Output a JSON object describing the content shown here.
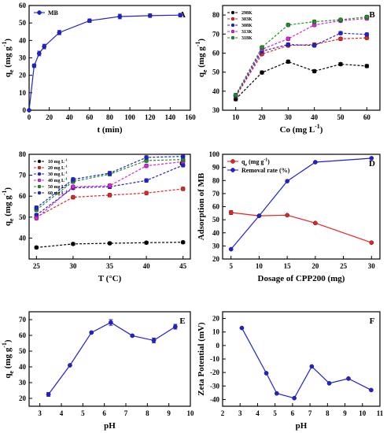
{
  "figure": {
    "background": "#ffffff"
  },
  "chart_data": [
    {
      "letter": "A",
      "type": "line",
      "xlabel": "t (min)",
      "ylabel": "q_e (mg g^-1)",
      "xlim": [
        0,
        160
      ],
      "ylim": [
        0,
        60
      ],
      "xticks": [
        0,
        20,
        40,
        60,
        80,
        100,
        120,
        140,
        160
      ],
      "yticks": [
        0,
        10,
        20,
        30,
        40,
        50,
        60
      ],
      "legend_position": "top-left",
      "series": [
        {
          "name": "MB",
          "color": "#1f1fdc",
          "style": "solid",
          "marker": "circle",
          "show_legend": true,
          "x": [
            0,
            5,
            10,
            15,
            30,
            60,
            90,
            120,
            150
          ],
          "y": [
            0,
            25.5,
            32.5,
            36.5,
            44.5,
            51.3,
            53.7,
            54.2,
            54.5
          ],
          "err": [
            0,
            1.0,
            1.3,
            1.3,
            1.2,
            1.0,
            1.3,
            1.0,
            1.0
          ]
        }
      ]
    },
    {
      "letter": "B",
      "type": "line",
      "xlabel": "Co (mg L^-1)",
      "ylabel": "q_e (mg g^-1)",
      "xlim": [
        5,
        65
      ],
      "ylim": [
        30,
        85
      ],
      "xticks": [
        10,
        20,
        30,
        40,
        50,
        60
      ],
      "yticks": [
        30,
        40,
        50,
        60,
        70,
        80
      ],
      "legend_position": "top-left",
      "series": [
        {
          "name": "298K",
          "color": "#000000",
          "style": "dashed",
          "marker": "circle",
          "show_legend": true,
          "x": [
            10,
            20,
            30,
            40,
            50,
            60
          ],
          "y": [
            35.8,
            49.8,
            55.5,
            50.5,
            54.2,
            53.2
          ],
          "err": [
            0.8,
            0.8,
            0.8,
            0.8,
            0.8,
            0.8
          ]
        },
        {
          "name": "303K",
          "color": "#e8231f",
          "style": "dashed",
          "marker": "circle",
          "show_legend": true,
          "x": [
            10,
            20,
            30,
            40,
            50,
            60
          ],
          "y": [
            37.2,
            59.5,
            64.0,
            64.5,
            67.5,
            68.0
          ],
          "err": [
            0.8,
            0.8,
            0.8,
            0.8,
            0.8,
            0.8
          ]
        },
        {
          "name": "308K",
          "color": "#1f1fdc",
          "style": "dashed",
          "marker": "circle",
          "show_legend": true,
          "x": [
            10,
            20,
            30,
            40,
            50,
            60
          ],
          "y": [
            37.5,
            61.0,
            64.5,
            64.0,
            70.5,
            69.8
          ],
          "err": [
            0.8,
            0.8,
            0.8,
            0.8,
            0.8,
            0.8
          ]
        },
        {
          "name": "313K",
          "color": "#e01fe0",
          "style": "dashed",
          "marker": "circle",
          "show_legend": true,
          "x": [
            10,
            20,
            30,
            40,
            50,
            60
          ],
          "y": [
            37.8,
            62.0,
            67.5,
            74.8,
            77.0,
            78.2
          ],
          "err": [
            0.8,
            0.8,
            0.8,
            0.8,
            0.8,
            0.8
          ]
        },
        {
          "name": "318K",
          "color": "#1f8f2a",
          "style": "dashed",
          "marker": "circle",
          "show_legend": true,
          "x": [
            10,
            20,
            30,
            40,
            50,
            60
          ],
          "y": [
            38.0,
            63.0,
            74.8,
            76.5,
            77.5,
            79.0
          ],
          "err": [
            0.8,
            0.8,
            0.8,
            0.8,
            0.8,
            0.8
          ]
        }
      ]
    },
    {
      "letter": "C",
      "type": "line",
      "xlabel": "T (°C)",
      "ylabel": "q_e (mg g^-1)",
      "xlim": [
        24,
        46
      ],
      "ylim": [
        30,
        80
      ],
      "xticks": [
        25,
        30,
        35,
        40,
        45
      ],
      "yticks": [
        40,
        50,
        60,
        70,
        80
      ],
      "legend_position": "top-left",
      "series": [
        {
          "name": "10 mg L^-1",
          "color": "#000000",
          "style": "dashed",
          "marker": "circle",
          "show_legend": true,
          "x": [
            25,
            30,
            35,
            40,
            45
          ],
          "y": [
            35.5,
            37.2,
            37.5,
            37.8,
            38.0
          ],
          "err": [
            0.6,
            0.6,
            0.6,
            0.6,
            0.6
          ]
        },
        {
          "name": "20 mg L^-1",
          "color": "#e8231f",
          "style": "dashed",
          "marker": "circle",
          "show_legend": true,
          "x": [
            25,
            30,
            35,
            40,
            45
          ],
          "y": [
            50.0,
            59.5,
            60.5,
            61.5,
            63.5
          ],
          "err": [
            0.8,
            0.8,
            0.8,
            0.8,
            0.8
          ]
        },
        {
          "name": "30 mg L^-1",
          "color": "#1f1fdc",
          "style": "dashed",
          "marker": "circle",
          "show_legend": true,
          "x": [
            25,
            30,
            35,
            40,
            45
          ],
          "y": [
            51.0,
            64.0,
            64.5,
            67.5,
            74.8
          ],
          "err": [
            0.8,
            0.8,
            0.8,
            0.8,
            0.8
          ]
        },
        {
          "name": "40 mg L^-1",
          "color": "#e01fe0",
          "style": "dashed",
          "marker": "circle",
          "show_legend": true,
          "x": [
            25,
            30,
            35,
            40,
            45
          ],
          "y": [
            49.5,
            64.5,
            65.0,
            74.5,
            76.5
          ],
          "err": [
            0.8,
            0.8,
            0.8,
            0.8,
            0.8
          ]
        },
        {
          "name": "50 mg L^-1",
          "color": "#1f8f2a",
          "style": "dashed",
          "marker": "circle",
          "show_legend": true,
          "x": [
            25,
            30,
            35,
            40,
            45
          ],
          "y": [
            53.5,
            67.0,
            70.5,
            77.0,
            77.5
          ],
          "err": [
            0.8,
            0.8,
            0.8,
            0.8,
            0.8
          ]
        },
        {
          "name": "60 mg L^-1",
          "color": "#1f1fdc",
          "style": "dashed",
          "marker": "circle",
          "show_legend": true,
          "x": [
            25,
            30,
            35,
            40,
            45
          ],
          "y": [
            54.5,
            68.0,
            71.0,
            78.5,
            79.0
          ],
          "err": [
            0.8,
            0.8,
            0.8,
            0.8,
            0.8
          ]
        }
      ]
    },
    {
      "letter": "D",
      "type": "line",
      "xlabel": "Dosage of CPP200 (mg)",
      "ylabel": "Adsorption of MB",
      "xlim": [
        3.5,
        31.5
      ],
      "ylim": [
        20,
        100
      ],
      "xticks": [
        5,
        10,
        15,
        20,
        25,
        30
      ],
      "yticks": [
        20,
        30,
        40,
        50,
        60,
        70,
        80,
        90,
        100
      ],
      "legend_position": "top-left",
      "series": [
        {
          "name": "q_e (mg g^-1)",
          "color": "#e8231f",
          "style": "solid",
          "marker": "circle",
          "show_legend": true,
          "x": [
            5,
            10,
            15,
            20,
            30
          ],
          "y": [
            55.5,
            53.0,
            53.5,
            47.5,
            32.5
          ],
          "err": [
            1.5,
            0.5,
            0.5,
            0.5,
            0.5
          ]
        },
        {
          "name": "Removal rate (%)",
          "color": "#1f1fdc",
          "style": "solid",
          "marker": "circle",
          "show_legend": true,
          "x": [
            5,
            10,
            15,
            20,
            30
          ],
          "y": [
            27.5,
            53.0,
            79.5,
            94.0,
            97.0
          ],
          "err": [
            0,
            0,
            0,
            0,
            0
          ]
        }
      ]
    },
    {
      "letter": "E",
      "type": "line",
      "xlabel": "pH",
      "ylabel": "q_e (mg g^-1)",
      "xlim": [
        2.5,
        10
      ],
      "ylim": [
        15,
        75
      ],
      "xticks": [
        3,
        4,
        5,
        6,
        7,
        8,
        9,
        10
      ],
      "yticks": [
        20,
        30,
        40,
        50,
        60,
        70
      ],
      "legend_position": "",
      "series": [
        {
          "name": "",
          "color": "#1f1fdc",
          "style": "solid",
          "marker": "circle",
          "show_legend": false,
          "x": [
            3.4,
            4.4,
            5.4,
            6.3,
            7.3,
            8.3,
            9.3
          ],
          "y": [
            22.5,
            41.0,
            61.8,
            68.2,
            59.8,
            56.8,
            65.5
          ],
          "err": [
            1.2,
            0.5,
            0.5,
            1.8,
            0.6,
            1.5,
            1.5
          ]
        }
      ]
    },
    {
      "letter": "F",
      "type": "line",
      "xlabel": "pH",
      "ylabel": "Zeta Potential (mV)",
      "xlim": [
        2,
        11
      ],
      "ylim": [
        -45,
        25
      ],
      "xticks": [
        2,
        3,
        4,
        5,
        6,
        7,
        8,
        9,
        10,
        11
      ],
      "yticks": [
        -40,
        -30,
        -20,
        -10,
        0,
        10,
        20
      ],
      "legend_position": "",
      "series": [
        {
          "name": "",
          "color": "#1f1fdc",
          "style": "solid",
          "marker": "circle",
          "show_legend": false,
          "x": [
            3.1,
            4.5,
            5.1,
            6.1,
            7.1,
            8.1,
            9.2,
            10.5
          ],
          "y": [
            13.0,
            -20.5,
            -35.5,
            -39.0,
            -15.5,
            -28.0,
            -24.5,
            -33.0
          ],
          "err": [
            0,
            0,
            0,
            0,
            0,
            0,
            0,
            0
          ]
        }
      ]
    }
  ]
}
